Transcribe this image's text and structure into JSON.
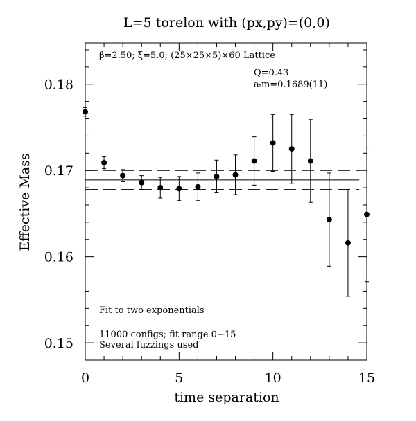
{
  "chart_data": {
    "type": "scatter",
    "title": "L=5 torelon with (px,py)=(0,0)",
    "xlabel": "time separation",
    "ylabel": "Effective Mass",
    "xlim": [
      0,
      15
    ],
    "ylim": [
      0.148,
      0.1848
    ],
    "x_ticks": [
      {
        "v": 0,
        "label": "0"
      },
      {
        "v": 5,
        "label": "5"
      },
      {
        "v": 10,
        "label": "10"
      },
      {
        "v": 15,
        "label": "15"
      }
    ],
    "y_ticks": [
      {
        "v": 0.15,
        "label": "0.15"
      },
      {
        "v": 0.16,
        "label": "0.16"
      },
      {
        "v": 0.17,
        "label": "0.17"
      },
      {
        "v": 0.18,
        "label": "0.18"
      }
    ],
    "grid": false,
    "annotations": {
      "lattice": "β=2.50; ξ=5.0; (25×25×5)×60 Lattice",
      "q": "Q=0.43",
      "fit_mass": "aₜm=0.1689(11)",
      "fit_type": "Fit to two exponentials",
      "configs": "11000 configs; fit range 0−15",
      "fuzzings": "Several fuzzings used"
    },
    "fit": {
      "value": 0.1689,
      "error": 0.0011,
      "x_range": [
        0,
        14.6
      ]
    },
    "series": [
      {
        "x": [
          0,
          1,
          2,
          3,
          4,
          5,
          6,
          7,
          8,
          9,
          10,
          11,
          12,
          13,
          14,
          15
        ],
        "y": [
          0.1768,
          0.1709,
          0.1694,
          0.1686,
          0.168,
          0.1679,
          0.1681,
          0.1693,
          0.1695,
          0.1711,
          0.1732,
          0.1725,
          0.1711,
          0.1643,
          0.1616,
          0.1649
        ],
        "err": [
          0.0005,
          0.0007,
          0.0007,
          0.0008,
          0.0012,
          0.0014,
          0.0016,
          0.0019,
          0.0023,
          0.0028,
          0.0033,
          0.004,
          0.0048,
          0.0054,
          0.0062,
          0.0078
        ]
      }
    ]
  }
}
